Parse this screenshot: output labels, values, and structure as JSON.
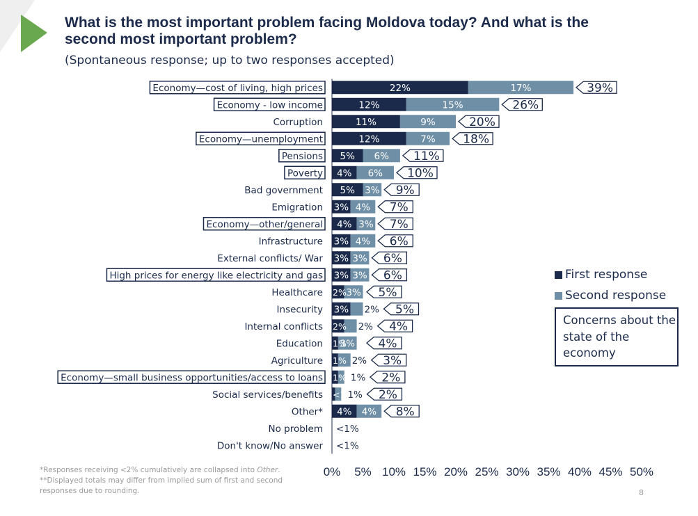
{
  "title": "What is the most important problem facing Moldova today? And what is the second most important problem?",
  "subtitle": "(Spontaneous response; up to two responses accepted)",
  "legend": {
    "first": "First response",
    "second": "Second response"
  },
  "concern_box": "Concerns about the state of the economy",
  "footnote_1": "*Responses receiving <2% cumulatively are collapsed into ",
  "footnote_1_em": "Other",
  "footnote_1_end": ".",
  "footnote_2": "**Displayed totals may differ from implied sum of first and second responses due to rounding.",
  "page_number": "8",
  "colors": {
    "first": "#1b2a4a",
    "second": "#6f8fa6",
    "accent_arrow": "#6aa84f",
    "arrow_bg": "#efefef"
  },
  "chart_data": {
    "type": "bar",
    "orientation": "horizontal",
    "stacked": true,
    "xlim": [
      0,
      50
    ],
    "xticks": [
      "0%",
      "5%",
      "10%",
      "15%",
      "20%",
      "25%",
      "30%",
      "35%",
      "40%",
      "45%",
      "50%"
    ],
    "series": [
      {
        "name": "First response",
        "color": "#1b2a4a"
      },
      {
        "name": "Second response",
        "color": "#6f8fa6"
      }
    ],
    "rows": [
      {
        "label": "Economy—cost of living, high prices",
        "boxed": true,
        "first": 22,
        "second": 17,
        "first_label": "22%",
        "second_label": "17%",
        "total_label": "39%"
      },
      {
        "label": "Economy - low income",
        "boxed": true,
        "first": 12,
        "second": 15,
        "first_label": "12%",
        "second_label": "15%",
        "total_label": "26%"
      },
      {
        "label": "Corruption",
        "boxed": false,
        "first": 11,
        "second": 9,
        "first_label": "11%",
        "second_label": "9%",
        "total_label": "20%"
      },
      {
        "label": "Economy—unemployment",
        "boxed": true,
        "first": 12,
        "second": 7,
        "first_label": "12%",
        "second_label": "7%",
        "total_label": "18%"
      },
      {
        "label": "Pensions",
        "boxed": true,
        "first": 5,
        "second": 6,
        "first_label": "5%",
        "second_label": "6%",
        "total_label": "11%"
      },
      {
        "label": "Poverty",
        "boxed": true,
        "first": 4,
        "second": 6,
        "first_label": "4%",
        "second_label": "6%",
        "total_label": "10%"
      },
      {
        "label": "Bad government",
        "boxed": false,
        "first": 5,
        "second": 3,
        "first_label": "5%",
        "second_label": "3%",
        "total_label": "9%"
      },
      {
        "label": "Emigration",
        "boxed": false,
        "first": 3,
        "second": 4,
        "first_label": "3%",
        "second_label": "4%",
        "total_label": "7%"
      },
      {
        "label": "Economy—other/general",
        "boxed": true,
        "first": 4,
        "second": 3,
        "first_label": "4%",
        "second_label": "3%",
        "total_label": "7%"
      },
      {
        "label": "Infrastructure",
        "boxed": false,
        "first": 3,
        "second": 4,
        "first_label": "3%",
        "second_label": "4%",
        "total_label": "6%"
      },
      {
        "label": "External conflicts/ War",
        "boxed": false,
        "first": 3,
        "second": 3,
        "first_label": "3%",
        "second_label": "3%",
        "total_label": "6%"
      },
      {
        "label": "High prices for energy like electricity and gas",
        "boxed": true,
        "first": 3,
        "second": 3,
        "first_label": "3%",
        "second_label": "3%",
        "total_label": "6%"
      },
      {
        "label": "Healthcare",
        "boxed": false,
        "first": 2,
        "second": 3,
        "first_label": "2%",
        "second_label": "3%",
        "total_label": "5%"
      },
      {
        "label": "Insecurity",
        "boxed": false,
        "first": 3,
        "second": 2,
        "first_label": "3%",
        "second_label": "2%",
        "total_label": "5%"
      },
      {
        "label": "Internal conflicts",
        "boxed": false,
        "first": 2,
        "second": 2,
        "first_label": "2%",
        "second_label": "2%",
        "total_label": "4%"
      },
      {
        "label": "Education",
        "boxed": false,
        "first": 1,
        "second": 3,
        "first_label": "1%",
        "second_label": "3%",
        "total_label": "4%"
      },
      {
        "label": "Agriculture",
        "boxed": false,
        "first": 1,
        "second": 2,
        "first_label": "1%",
        "second_label": "2%",
        "total_label": "3%"
      },
      {
        "label": "Economy—small business opportunities/access to loans",
        "boxed": true,
        "first": 1,
        "second": 1,
        "first_label": "1%",
        "second_label": "1%",
        "total_label": "2%"
      },
      {
        "label": "Social services/benefits",
        "boxed": false,
        "first": 0.5,
        "second": 1,
        "first_label": "<1%",
        "second_label": "1%",
        "total_label": "2%"
      },
      {
        "label": "Other*",
        "boxed": false,
        "first": 4,
        "second": 4,
        "first_label": "4%",
        "second_label": "4%",
        "total_label": "8%"
      },
      {
        "label": "No problem",
        "boxed": false,
        "first": 0,
        "second": 0,
        "first_label": "<1%",
        "second_label": "",
        "total_label": ""
      },
      {
        "label": "Don't know/No answer",
        "boxed": false,
        "first": 0,
        "second": 0,
        "first_label": "<1%",
        "second_label": "",
        "total_label": ""
      }
    ]
  }
}
